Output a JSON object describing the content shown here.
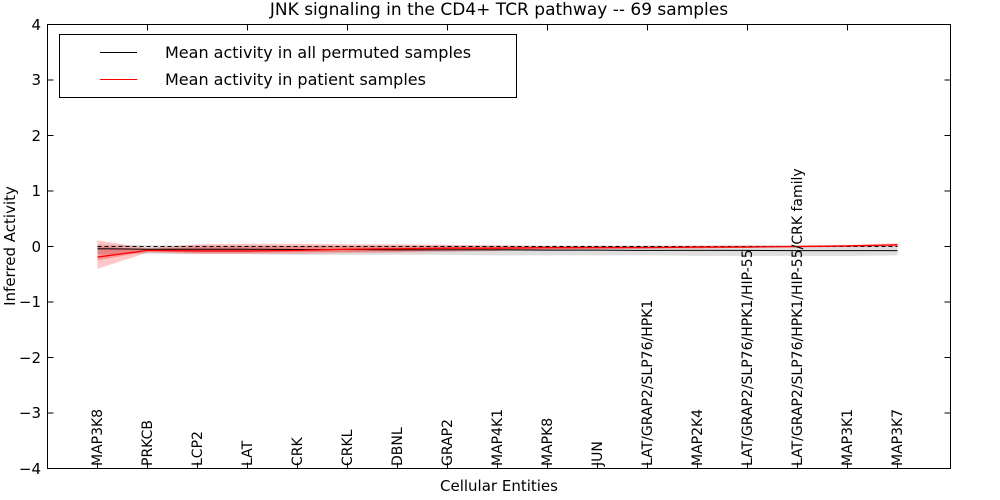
{
  "title": "JNK signaling in the CD4+ TCR pathway -- 69 samples",
  "axes": {
    "xlabel": "Cellular Entities",
    "ylabel": "Inferred Activity",
    "ylim": [
      -4,
      4
    ],
    "yticks": [
      4,
      3,
      2,
      1,
      0,
      -1,
      -2,
      -3,
      -4
    ],
    "ytick_labels": [
      "4",
      "3",
      "2",
      "1",
      "0",
      "−1",
      "−2",
      "−3",
      "−4"
    ],
    "grid": false,
    "frame": true
  },
  "legend": {
    "position": "upper left",
    "items": [
      {
        "label": "Mean activity in all permuted samples",
        "color": "#000000"
      },
      {
        "label": "Mean activity in patient samples",
        "color": "#ff0000"
      }
    ]
  },
  "chart_data": {
    "type": "line",
    "title": "JNK signaling in the CD4+ TCR pathway -- 69 samples",
    "xlabel": "Cellular Entities",
    "ylabel": "Inferred Activity",
    "ylim": [
      -4,
      4
    ],
    "legend_position": "upper left",
    "categories": [
      "MAP3K8",
      "PRKCB",
      "LCP2",
      "LAT",
      "CRK",
      "CRKL",
      "DBNL",
      "GRAP2",
      "MAP4K1",
      "MAPK8",
      "JUN",
      "LAT/GRAP2/SLP76/HPK1",
      "MAP2K4",
      "LAT/GRAP2/SLP76/HPK1/HIP-55",
      "LAT/GRAP2/SLP76/HPK1/HIP-55/CRK family",
      "MAP3K1",
      "MAP3K7"
    ],
    "series": [
      {
        "name": "Mean activity in all permuted samples",
        "color": "#000000",
        "width": 1.0,
        "values": [
          -0.04,
          -0.05,
          -0.05,
          -0.05,
          -0.055,
          -0.055,
          -0.06,
          -0.06,
          -0.06,
          -0.065,
          -0.065,
          -0.07,
          -0.07,
          -0.07,
          -0.075,
          -0.075,
          -0.075
        ]
      },
      {
        "name": "Mean activity in patient samples",
        "color": "#ff0000",
        "width": 1.3,
        "values": [
          -0.19,
          -0.07,
          -0.08,
          -0.08,
          -0.07,
          -0.05,
          -0.04,
          -0.03,
          -0.03,
          -0.02,
          -0.02,
          -0.02,
          -0.01,
          -0.01,
          0.0,
          0.01,
          0.03
        ]
      }
    ],
    "bands": [
      {
        "name": "permuted-samples-range",
        "color": "rgba(0,0,0,0.13)",
        "upper": [
          0.04,
          0.02,
          0.02,
          0.02,
          0.02,
          0.02,
          0.02,
          0.02,
          0.02,
          0.02,
          0.02,
          0.02,
          0.02,
          0.02,
          0.02,
          0.02,
          0.03
        ],
        "lower": [
          -0.14,
          -0.13,
          -0.14,
          -0.14,
          -0.15,
          -0.15,
          -0.15,
          -0.15,
          -0.16,
          -0.16,
          -0.16,
          -0.16,
          -0.17,
          -0.17,
          -0.17,
          -0.17,
          -0.16
        ]
      },
      {
        "name": "patient-samples-range-outer",
        "color": "rgba(255,0,0,0.22)",
        "upper": [
          0.11,
          -0.03,
          0.04,
          0.05,
          0.05,
          0.04,
          0.04,
          0.03,
          0.02,
          0.01,
          0.01,
          0.01,
          0.01,
          0.02,
          0.02,
          0.03,
          0.06
        ],
        "lower": [
          -0.4,
          -0.11,
          -0.13,
          -0.13,
          -0.13,
          -0.12,
          -0.11,
          -0.1,
          -0.08,
          -0.06,
          -0.05,
          -0.04,
          -0.04,
          -0.02,
          -0.02,
          -0.01,
          0.0
        ]
      },
      {
        "name": "patient-samples-range-inner",
        "color": "rgba(255,0,0,0.25)",
        "upper": [
          0.0,
          -0.05,
          -0.01,
          0.0,
          0.0,
          0.0,
          0.0,
          -0.01,
          -0.01,
          -0.01,
          0.0,
          0.0,
          0.0,
          0.0,
          0.01,
          0.02,
          0.04
        ],
        "lower": [
          -0.25,
          -0.09,
          -0.11,
          -0.11,
          -0.1,
          -0.1,
          -0.09,
          -0.07,
          -0.06,
          -0.05,
          -0.04,
          -0.03,
          -0.03,
          -0.02,
          -0.01,
          0.0,
          0.01
        ]
      }
    ],
    "zero_line": {
      "y": 0,
      "style": "dashed",
      "color": "#000000"
    }
  }
}
